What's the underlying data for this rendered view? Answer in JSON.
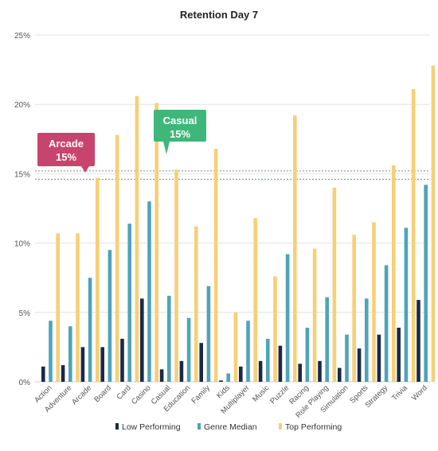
{
  "chart_data": {
    "type": "bar",
    "title": "Retention Day 7",
    "categories": [
      "Action",
      "Adventure",
      "Arcade",
      "Board",
      "Card",
      "Casino",
      "Casual",
      "Education",
      "Family",
      "Kids",
      "Multiplayer",
      "Music",
      "Puzzle",
      "Racing",
      "Role Playing",
      "Simulation",
      "Sports",
      "Strategy",
      "Trivia",
      "Word"
    ],
    "series": [
      {
        "name": "Low Performing",
        "color": "#1b2a44",
        "values": [
          1.1,
          1.2,
          2.5,
          2.5,
          3.1,
          6.0,
          0.9,
          1.5,
          2.8,
          0.1,
          1.1,
          1.5,
          2.6,
          1.3,
          1.5,
          1.0,
          2.4,
          3.4,
          3.9,
          5.9
        ]
      },
      {
        "name": "Genre Median",
        "color": "#4ea4b8",
        "values": [
          4.4,
          4.0,
          7.5,
          9.5,
          11.4,
          13.0,
          6.2,
          4.6,
          6.9,
          0.6,
          4.4,
          3.1,
          9.2,
          3.9,
          6.1,
          3.4,
          6.0,
          8.4,
          11.1,
          14.2
        ]
      },
      {
        "name": "Top Performing",
        "color": "#f7cf77",
        "values": [
          10.7,
          10.7,
          14.7,
          17.8,
          20.6,
          20.1,
          15.3,
          11.2,
          16.8,
          5.0,
          11.8,
          7.6,
          19.2,
          9.6,
          14.0,
          10.6,
          11.5,
          15.6,
          21.1,
          22.8
        ]
      }
    ],
    "yticks": [
      "0%",
      "5%",
      "10%",
      "15%",
      "20%",
      "25%"
    ],
    "ylim": [
      0,
      25
    ],
    "grid": true,
    "legend": "bottom",
    "reference_lines": [
      14.6,
      15.2
    ],
    "annotations": [
      {
        "label": "Arcade",
        "value": "15%",
        "color": "#c8446f",
        "target_category": "Arcade"
      },
      {
        "label": "Casual",
        "value": "15%",
        "color": "#3fb77a",
        "target_category": "Casual"
      }
    ]
  }
}
